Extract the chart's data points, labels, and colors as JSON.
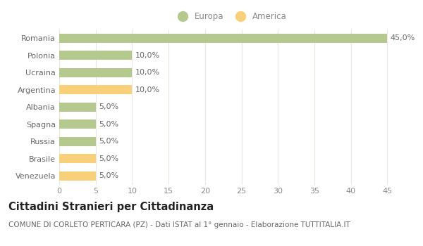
{
  "categories": [
    "Romania",
    "Polonia",
    "Ucraina",
    "Argentina",
    "Albania",
    "Spagna",
    "Russia",
    "Brasile",
    "Venezuela"
  ],
  "values": [
    45.0,
    10.0,
    10.0,
    10.0,
    5.0,
    5.0,
    5.0,
    5.0,
    5.0
  ],
  "colors": [
    "#b5c98e",
    "#b5c98e",
    "#b5c98e",
    "#f9d07a",
    "#b5c98e",
    "#b5c98e",
    "#b5c98e",
    "#f9d07a",
    "#f9d07a"
  ],
  "europa_color": "#b5c98e",
  "america_color": "#f9d07a",
  "xlim": [
    0,
    47
  ],
  "xticks": [
    0,
    5,
    10,
    15,
    20,
    25,
    30,
    35,
    40,
    45
  ],
  "title": "Cittadini Stranieri per Cittadinanza",
  "subtitle": "COMUNE DI CORLETO PERTICARA (PZ) - Dati ISTAT al 1° gennaio - Elaborazione TUTTITALIA.IT",
  "bg_color": "#ffffff",
  "grid_color": "#e8e8dc",
  "bar_height": 0.55,
  "title_fontsize": 10.5,
  "subtitle_fontsize": 7.5,
  "tick_fontsize": 8,
  "label_fontsize": 8,
  "ytick_color": "#666666",
  "xtick_color": "#888888",
  "label_color": "#666666"
}
